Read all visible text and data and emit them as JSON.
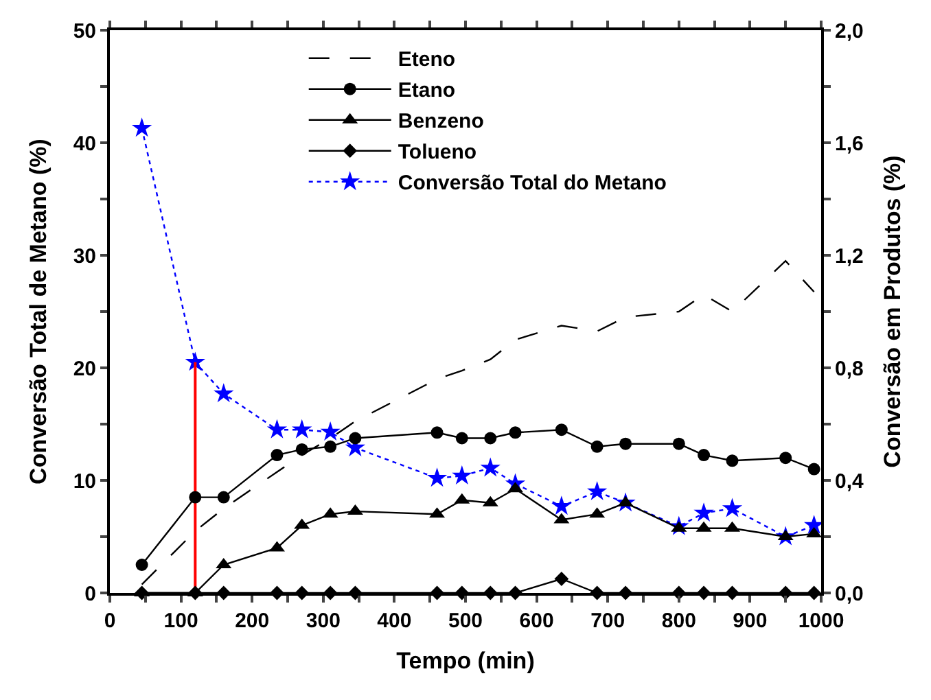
{
  "chart_data": {
    "type": "line",
    "xlabel": "Tempo (min)",
    "ylabel": "Conversão Total de Metano (%)",
    "y2label": "Conversão em Produtos (%)",
    "x": [
      45,
      120,
      160,
      235,
      270,
      310,
      345,
      460,
      495,
      535,
      570,
      635,
      685,
      725,
      800,
      835,
      875,
      950,
      990
    ],
    "series": [
      {
        "name": "Eteno",
        "color": "#000000",
        "axis": "y2",
        "marker": "none",
        "line_style": "dashed",
        "values": [
          0.03,
          0.22,
          0.3,
          0.43,
          0.49,
          0.55,
          0.61,
          0.76,
          0.79,
          0.83,
          0.9,
          0.95,
          0.93,
          0.98,
          1.0,
          1.06,
          1.0,
          1.18,
          1.07
        ]
      },
      {
        "name": "Etano",
        "color": "#000000",
        "axis": "y2",
        "marker": "circle",
        "line_style": "solid",
        "values": [
          0.1,
          0.34,
          0.34,
          0.49,
          0.51,
          0.52,
          0.55,
          0.57,
          0.55,
          0.55,
          0.57,
          0.58,
          0.52,
          0.53,
          0.53,
          0.49,
          0.47,
          0.48,
          0.44
        ]
      },
      {
        "name": "Benzeno",
        "color": "#000000",
        "axis": "y2",
        "marker": "triangle",
        "line_style": "solid",
        "values": [
          0,
          0,
          0.1,
          0.16,
          0.24,
          0.28,
          0.29,
          0.28,
          0.33,
          0.32,
          0.37,
          0.26,
          0.28,
          0.32,
          0.23,
          0.23,
          0.23,
          0.2,
          0.21
        ]
      },
      {
        "name": "Tolueno",
        "color": "#000000",
        "axis": "y2",
        "marker": "diamond",
        "line_style": "solid",
        "values": [
          0,
          0,
          0,
          0,
          0,
          0,
          0,
          0,
          0,
          0,
          0,
          0.05,
          0,
          0,
          0,
          0,
          0,
          0,
          0
        ]
      },
      {
        "name": "Conversão Total do Metano",
        "color": "#0000ff",
        "marker": "star",
        "line_style": "dotted",
        "values": [
          41.3,
          20.5,
          17.7,
          14.5,
          14.5,
          14.3,
          12.9,
          10.2,
          10.4,
          11.1,
          9.7,
          7.7,
          9.0,
          8.0,
          5.9,
          7.1,
          7.5,
          5.0,
          6.0
        ]
      },
      {
        "color": "#ff0000",
        "marker": "none",
        "line_style": "solid",
        "x": [
          120,
          120
        ],
        "values": [
          0,
          20.5
        ]
      }
    ],
    "xlim": [
      0,
      1000
    ],
    "xticks": [
      0,
      {
        "value": 50,
        "label": null
      },
      100,
      {
        "value": 150,
        "label": null
      },
      200,
      {
        "value": 250,
        "label": null
      },
      300,
      {
        "value": 350,
        "label": null
      },
      400,
      {
        "value": 450,
        "label": null
      },
      500,
      {
        "value": 550,
        "label": null
      },
      600,
      {
        "value": 650,
        "label": null
      },
      700,
      {
        "value": 750,
        "label": null
      },
      800,
      {
        "value": 850,
        "label": null
      },
      900,
      {
        "value": 950,
        "label": null
      },
      1000
    ],
    "ylim": [
      0,
      50
    ],
    "yticks": [
      0,
      {
        "value": 5,
        "label": null
      },
      10,
      {
        "value": 15,
        "label": null
      },
      20,
      {
        "value": 25,
        "label": null
      },
      30,
      {
        "value": 35,
        "label": null
      },
      40,
      {
        "value": 45,
        "label": null
      },
      50
    ],
    "y2lim": [
      0,
      2
    ],
    "y2ticks": [
      {
        "value": 0,
        "label": "0,0"
      },
      {
        "value": 0.2,
        "label": null
      },
      {
        "value": 0.4,
        "label": "0,4"
      },
      {
        "value": 0.6,
        "label": null
      },
      {
        "value": 0.8,
        "label": "0,8"
      },
      {
        "value": 1.0,
        "label": null
      },
      {
        "value": 1.2,
        "label": "1,2"
      },
      {
        "value": 1.4,
        "label": null
      },
      {
        "value": 1.6,
        "label": "1,6"
      },
      {
        "value": 1.8,
        "label": null
      },
      {
        "value": 2.0,
        "label": "2,0"
      }
    ],
    "grid": false,
    "legend": "top"
  }
}
